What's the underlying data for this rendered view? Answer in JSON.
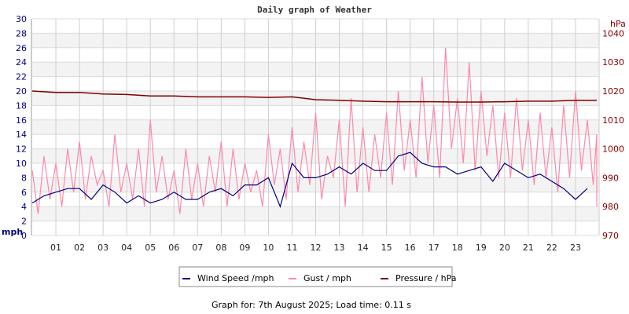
{
  "chart_data": {
    "type": "line",
    "title": "Daily graph of Weather",
    "footer": "Graph for: 7th August 2025; Load time: 0.11 s",
    "x_unit": "hour of day",
    "x_tick_labels": [
      "01",
      "02",
      "03",
      "04",
      "05",
      "06",
      "07",
      "08",
      "09",
      "10",
      "11",
      "12",
      "13",
      "14",
      "15",
      "16",
      "17",
      "18",
      "19",
      "20",
      "21",
      "22",
      "23"
    ],
    "xlim": [
      0,
      24
    ],
    "y_left": {
      "label": "mph",
      "range": [
        0,
        30
      ],
      "ticks": [
        0,
        2,
        4,
        6,
        8,
        10,
        12,
        14,
        16,
        18,
        20,
        22,
        24,
        26,
        28,
        30
      ],
      "color": "#000080"
    },
    "y_right": {
      "label": "hPa",
      "range": [
        970,
        1040
      ],
      "ticks": [
        970,
        980,
        990,
        1000,
        1010,
        1020,
        1030,
        1040
      ],
      "color": "#800000"
    },
    "grid": true,
    "legend_placement": "bottom",
    "series": [
      {
        "name": "Wind Speed /mph",
        "color": "#000080",
        "axis": "left",
        "step_hours": 0.5,
        "values": [
          4.5,
          5.5,
          6,
          6.5,
          6.5,
          5,
          7,
          6,
          4.5,
          5.5,
          4.5,
          5,
          6,
          5,
          5,
          6,
          6.5,
          5.5,
          7,
          7,
          8,
          4,
          10,
          8,
          8,
          8.5,
          9.5,
          8.5,
          10,
          9,
          9,
          11,
          11.5,
          10,
          9.5,
          9.5,
          8.5,
          9,
          9.5,
          7.5,
          10,
          9,
          8,
          8.5,
          7.5,
          6.5,
          5,
          6.5
        ]
      },
      {
        "name": "Gust / mph",
        "color": "#ff88aa",
        "axis": "left",
        "step_hours": 0.25,
        "values": [
          9,
          3,
          11,
          5,
          10,
          4,
          12,
          6,
          13,
          5,
          11,
          7,
          9,
          4,
          14,
          6,
          10,
          5,
          12,
          4,
          16,
          6,
          11,
          5,
          9,
          3,
          12,
          5,
          10,
          4,
          11,
          6,
          13,
          4,
          12,
          5,
          10,
          6,
          9,
          4,
          14,
          7,
          12,
          5,
          15,
          6,
          13,
          7,
          17,
          5,
          11,
          8,
          16,
          4,
          19,
          6,
          15,
          6,
          14,
          8,
          17,
          7,
          20,
          9,
          16,
          8,
          22,
          10,
          18,
          8,
          26,
          12,
          19,
          10,
          24,
          9,
          20,
          11,
          18,
          8,
          17,
          8,
          19,
          9,
          16,
          7,
          17,
          8,
          15,
          6,
          18,
          8,
          20,
          9,
          16,
          7,
          14,
          9,
          12,
          4,
          13,
          6,
          11,
          4,
          12,
          8,
          10,
          6
        ]
      },
      {
        "name": "Pressure / hPa",
        "color": "#800000",
        "axis": "right",
        "step_hours": 1,
        "values": [
          1020,
          1019.5,
          1019.5,
          1019,
          1018.8,
          1018.3,
          1018.3,
          1018,
          1018,
          1018,
          1017.8,
          1018,
          1017,
          1016.8,
          1016.5,
          1016.3,
          1016.3,
          1016.3,
          1016.2,
          1016.2,
          1016.3,
          1016.5,
          1016.5,
          1016.8,
          1016.8
        ]
      }
    ]
  }
}
